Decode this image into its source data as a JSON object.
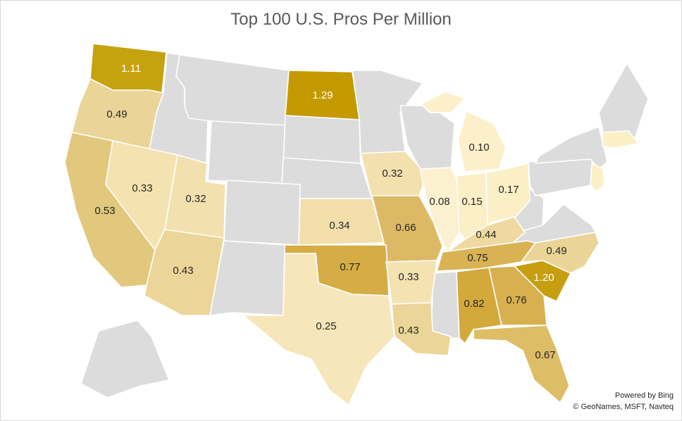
{
  "map": {
    "title": "Top 100 U.S. Pros Per Million",
    "credit_line1": "Powered by Bing",
    "credit_line2": "© GeoNames, MSFT, Navteq",
    "nodata_color": "#dcdcdc",
    "color_scale": {
      "min_color": "#fbeec6",
      "max_color": "#c49a00"
    },
    "regions": [
      {
        "name": "Washington",
        "value": "1.11"
      },
      {
        "name": "Oregon",
        "value": "0.49"
      },
      {
        "name": "California",
        "value": "0.53"
      },
      {
        "name": "Nevada",
        "value": "0.33"
      },
      {
        "name": "Utah",
        "value": "0.32"
      },
      {
        "name": "Arizona",
        "value": "0.43"
      },
      {
        "name": "North Dakota",
        "value": "1.29"
      },
      {
        "name": "Iowa",
        "value": "0.32"
      },
      {
        "name": "Kansas",
        "value": "0.34"
      },
      {
        "name": "Missouri",
        "value": "0.66"
      },
      {
        "name": "Oklahoma",
        "value": "0.77"
      },
      {
        "name": "Texas",
        "value": "0.25"
      },
      {
        "name": "Arkansas",
        "value": "0.33"
      },
      {
        "name": "Louisiana",
        "value": "0.43"
      },
      {
        "name": "Illinois",
        "value": "0.08"
      },
      {
        "name": "Indiana",
        "value": "0.15"
      },
      {
        "name": "Michigan",
        "value": "0.10"
      },
      {
        "name": "Ohio",
        "value": "0.17"
      },
      {
        "name": "Kentucky",
        "value": "0.44"
      },
      {
        "name": "Tennessee",
        "value": "0.75"
      },
      {
        "name": "Alabama",
        "value": "0.82"
      },
      {
        "name": "Georgia",
        "value": "0.76"
      },
      {
        "name": "Florida",
        "value": "0.67"
      },
      {
        "name": "South Carolina",
        "value": "1.20"
      },
      {
        "name": "North Carolina",
        "value": "0.49"
      },
      {
        "name": "New Jersey",
        "value": ""
      },
      {
        "name": "Massachusetts",
        "value": ""
      }
    ]
  }
}
